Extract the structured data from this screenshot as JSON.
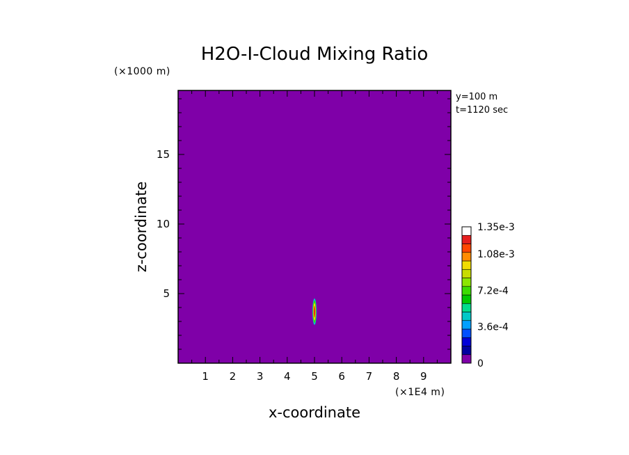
{
  "chart_data": {
    "type": "heatmap",
    "title": "H2O-I-Cloud Mixing Ratio",
    "xlabel": "x-coordinate",
    "ylabel": "z-coordinate",
    "x_unit": "(×1E4 m)",
    "y_unit": "(×1000 m)",
    "annotations": [
      "y=100 m",
      "t=1120 sec"
    ],
    "xlim": [
      0,
      10
    ],
    "ylim": [
      0,
      19.6
    ],
    "x_ticks": [
      1,
      2,
      3,
      4,
      5,
      6,
      7,
      8,
      9
    ],
    "y_ticks": [
      5,
      10,
      15
    ],
    "background_value": 0,
    "cloud": {
      "center_x": 5.0,
      "center_z": 3.7,
      "rings": [
        {
          "level": 0,
          "rx": 0.085,
          "rz": 1.05
        },
        {
          "level": 0.00045,
          "rx": 0.075,
          "rz": 0.95
        },
        {
          "level": 0.00072,
          "rx": 0.06,
          "rz": 0.8
        },
        {
          "level": 0.00099,
          "rx": 0.045,
          "rz": 0.62
        },
        {
          "level": 0.00117,
          "rx": 0.03,
          "rz": 0.42
        },
        {
          "level": 0.00126,
          "rx": 0.018,
          "rz": 0.25
        }
      ]
    },
    "colorbar": {
      "levels": [
        0,
        9e-05,
        0.00018,
        0.00027,
        0.00036,
        0.00045,
        0.00054,
        0.00063,
        0.00072,
        0.00081,
        0.0009,
        0.00099,
        0.00108,
        0.00117,
        0.00126,
        0.00135
      ],
      "colors": [
        "#7f00a8",
        "#0000a0",
        "#0000d8",
        "#0050ff",
        "#00a0ff",
        "#00c8c8",
        "#00dc8c",
        "#00c800",
        "#3cdc00",
        "#8ce600",
        "#c8dc00",
        "#f0dc00",
        "#ff8c00",
        "#ff4600",
        "#e61e1e",
        "#ffffff"
      ],
      "tick_labels": [
        {
          "value": 0,
          "label": "0"
        },
        {
          "value": 0.00036,
          "label": "3.6e-4"
        },
        {
          "value": 0.00072,
          "label": "7.2e-4"
        },
        {
          "value": 0.00108,
          "label": "1.08e-3"
        },
        {
          "value": 0.00135,
          "label": "1.35e-3"
        }
      ]
    }
  }
}
